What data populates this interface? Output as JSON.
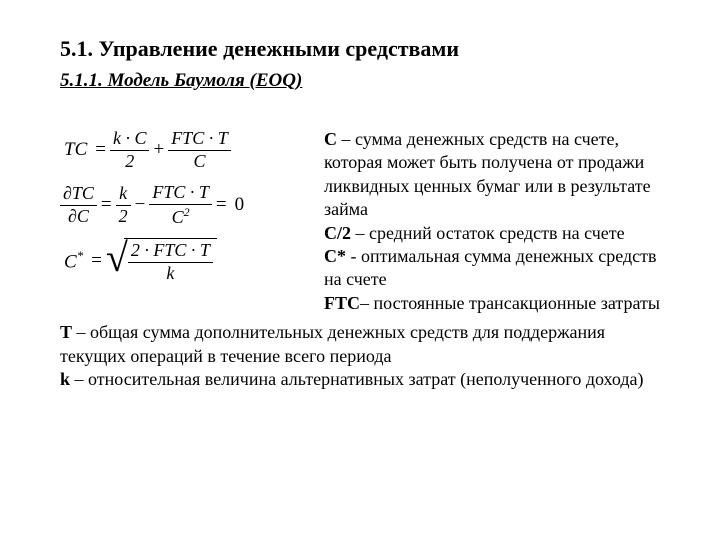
{
  "heading": "5.1. Управление денежными средствами",
  "subheading": "5.1.1. Модель Баумоля (EOQ)",
  "formulas": {
    "f1": {
      "lhs": "TC",
      "frac1_num": "k · C",
      "frac1_den": "2",
      "plus": "+",
      "frac2_num": "FTC · T",
      "frac2_den": "C",
      "eq": "="
    },
    "f2": {
      "lhs_num": "∂TC",
      "lhs_den": "∂C",
      "eq1": "=",
      "frac1_num": "k",
      "frac1_den": "2",
      "minus": "−",
      "frac2_num": "FTC · T",
      "frac2_den": "C",
      "frac2_den_sup": "2",
      "eq2": "=",
      "zero": "0"
    },
    "f3": {
      "lhs": "C",
      "lhs_sup": "*",
      "eq": "=",
      "sqrt_num": "2 · FTC · T",
      "sqrt_den": "k"
    }
  },
  "defs": {
    "c_term": "С",
    "c_text": " – сумма денежных средств на счете, которая может быть получена от продажи ликвидных ценных бумаг или в результате займа",
    "c2_term": "С/2",
    "c2_text": " – средний остаток средств на счете",
    "cstar_term": "С*",
    "cstar_text": " - оптимальная сумма денежных средств на счете",
    "ftc_term": "FTC",
    "ftc_text": "– постоянные трансакционные затраты",
    "t_term": "Т",
    "t_text": " – общая сумма дополнительных денежных средств для поддержания текущих операций в течение всего периода",
    "k_term": "k",
    "k_text": " – относительная величина альтернативных затрат (неполученного дохода)"
  }
}
